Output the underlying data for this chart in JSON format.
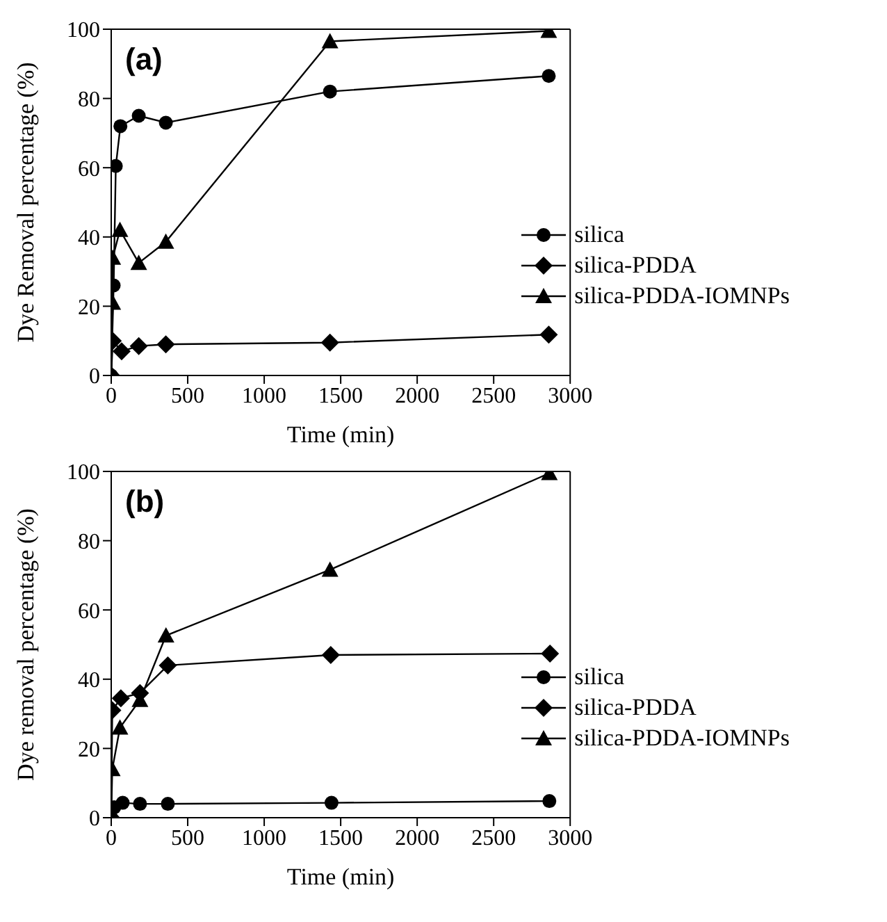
{
  "chart_data": [
    {
      "type": "line",
      "xlabel": "Time (min)",
      "ylabel": "Dye Removal percentage (%)",
      "annotations": [
        "(a)"
      ],
      "xlim": [
        0,
        3000
      ],
      "xticks": [
        0,
        500,
        1000,
        1500,
        2000,
        2500,
        3000
      ],
      "ylim": [
        0,
        100
      ],
      "yticks": [
        0,
        20,
        40,
        60,
        80,
        100
      ],
      "grid": false,
      "legend": "right",
      "line_style": "solid",
      "series": [
        {
          "name": "silica",
          "color": "#000000",
          "marker": "circle",
          "x": [
            0,
            16,
            30,
            60,
            180,
            357,
            1430,
            2860
          ],
          "values": [
            0,
            26,
            60.5,
            72,
            75,
            73,
            82,
            86.5
          ]
        },
        {
          "name": "silica-PDDA",
          "color": "#000000",
          "marker": "diamond",
          "x": [
            0,
            10,
            68,
            180,
            357,
            1430,
            2860
          ],
          "values": [
            0,
            10,
            7,
            8.5,
            9,
            9.5,
            11.8
          ]
        },
        {
          "name": "silica-PDDA-IOMNPs",
          "color": "#000000",
          "marker": "triangle",
          "x": [
            0,
            10,
            10,
            57,
            180,
            357,
            1430,
            2860
          ],
          "values": [
            0,
            21,
            34,
            42,
            32.5,
            38.6,
            96.5,
            99.5
          ]
        }
      ]
    },
    {
      "type": "line",
      "xlabel": "Time (min)",
      "ylabel": "Dye removal percentage (%)",
      "annotations": [
        "(b)"
      ],
      "xlim": [
        0,
        3000
      ],
      "xticks": [
        0,
        500,
        1000,
        1500,
        2000,
        2500,
        3000
      ],
      "ylim": [
        0,
        100
      ],
      "yticks": [
        0,
        20,
        40,
        60,
        80,
        100
      ],
      "grid": false,
      "legend": "right",
      "line_style": "solid",
      "series": [
        {
          "name": "silica",
          "color": "#000000",
          "marker": "circle",
          "x": [
            0,
            20,
            75,
            188,
            370,
            1440,
            2864
          ],
          "values": [
            0,
            3,
            4.3,
            4,
            4,
            4.3,
            4.8
          ]
        },
        {
          "name": "silica-PDDA",
          "color": "#000000",
          "marker": "diamond",
          "x": [
            0,
            7,
            63,
            188,
            370,
            1435,
            2868
          ],
          "values": [
            0,
            31,
            34.5,
            36,
            44,
            47,
            47.4
          ]
        },
        {
          "name": "silica-PDDA-IOMNPs",
          "color": "#000000",
          "marker": "triangle",
          "x": [
            0,
            7,
            57,
            188,
            358,
            1430,
            2864
          ],
          "values": [
            0,
            14,
            26,
            34,
            52.6,
            71.6,
            99.5
          ]
        }
      ]
    }
  ]
}
